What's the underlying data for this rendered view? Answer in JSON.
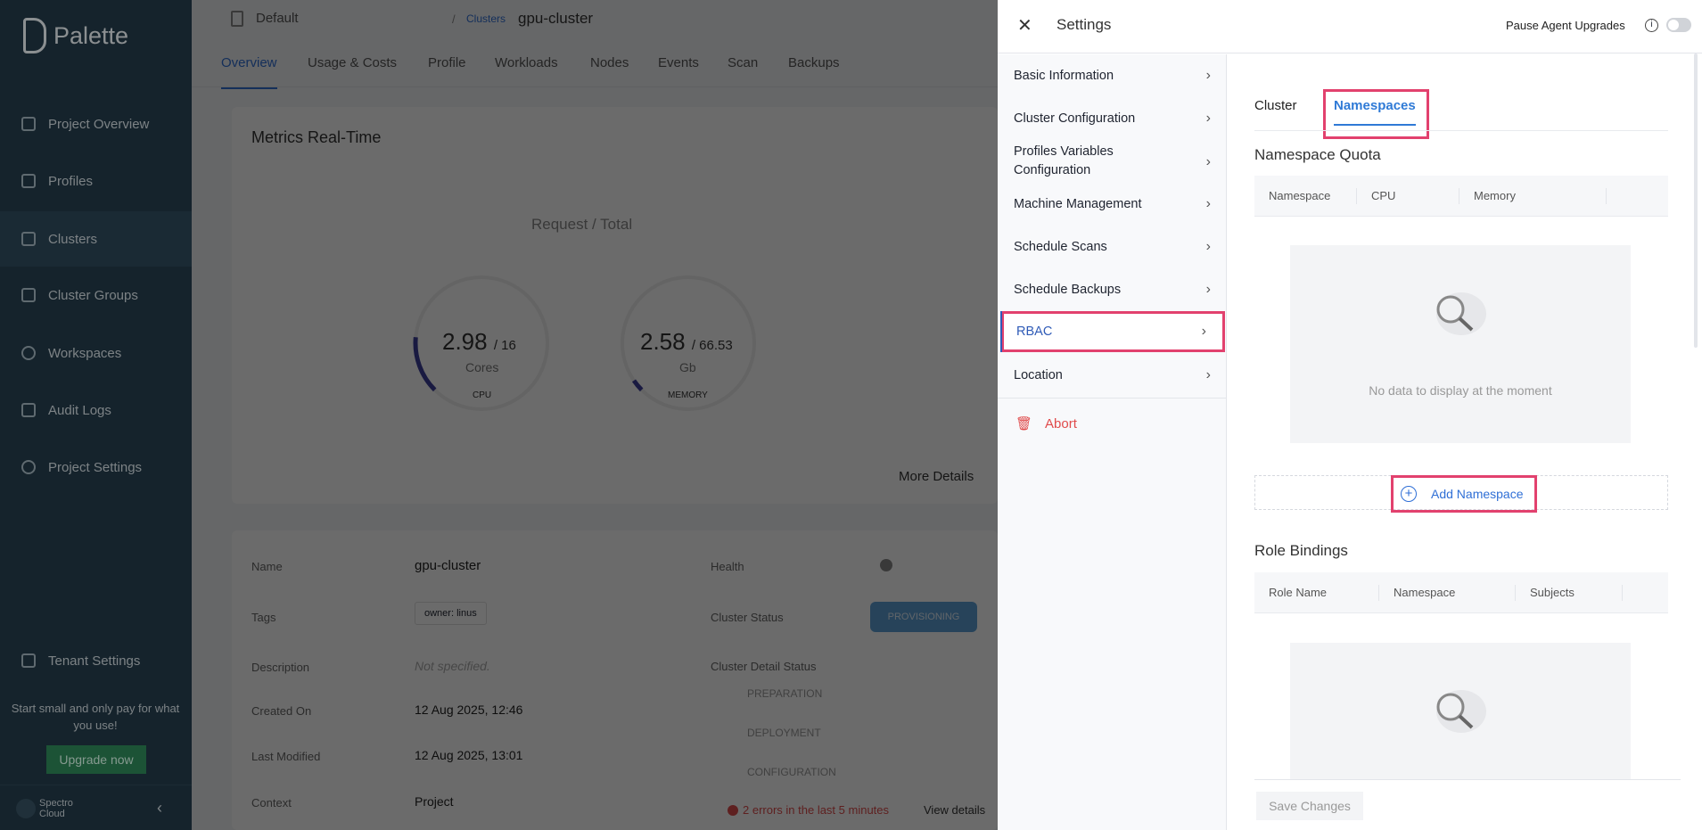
{
  "sidebar": {
    "logo": "Palette",
    "items": [
      {
        "label": "Project Overview",
        "icon": "chart-icon"
      },
      {
        "label": "Profiles",
        "icon": "stack-icon"
      },
      {
        "label": "Clusters",
        "icon": "list-icon",
        "active": true
      },
      {
        "label": "Cluster Groups",
        "icon": "network-icon"
      },
      {
        "label": "Workspaces",
        "icon": "target-icon"
      },
      {
        "label": "Audit Logs",
        "icon": "document-icon"
      },
      {
        "label": "Project Settings",
        "icon": "gear-icon"
      }
    ],
    "tenant_settings": "Tenant Settings",
    "promo": "Start small and only pay for what you use!",
    "upgrade": "Upgrade now",
    "org": "Spectro Cloud"
  },
  "main": {
    "project": "Default",
    "breadcrumb_parent": "Clusters",
    "breadcrumb_sep": "/",
    "cluster": "gpu-cluster",
    "tabs": [
      "Overview",
      "Usage & Costs",
      "Profile",
      "Workloads",
      "Nodes",
      "Events",
      "Scan",
      "Backups"
    ],
    "metrics_title": "Metrics Real-Time",
    "request_total": "Request / Total",
    "cpu": {
      "value": "2.98",
      "total": "/ 16",
      "unit": "Cores",
      "label": "CPU",
      "fraction": 0.186
    },
    "memory": {
      "value": "2.58",
      "total": "/ 66.53",
      "unit": "Gb",
      "label": "MEMORY",
      "fraction": 0.039
    },
    "more_details": "More Details",
    "details": {
      "name_label": "Name",
      "name": "gpu-cluster",
      "tags_label": "Tags",
      "tag": "owner: linus",
      "description_label": "Description",
      "description": "Not specified.",
      "created_label": "Created On",
      "created": "12 Aug 2025, 12:46",
      "modified_label": "Last Modified",
      "modified": "12 Aug 2025, 13:01",
      "context_label": "Context",
      "context": "Project",
      "health_label": "Health",
      "status_label": "Cluster Status",
      "status": "PROVISIONING",
      "detail_status_label": "Cluster Detail Status",
      "steps": [
        "PREPARATION",
        "DEPLOYMENT",
        "CONFIGURATION"
      ],
      "errors": "2 errors in the last 5 minutes",
      "view": "View details"
    }
  },
  "settings": {
    "title": "Settings",
    "pause_label": "Pause Agent Upgrades",
    "pause_enabled": false,
    "menu": [
      "Basic Information",
      "Cluster Configuration",
      "Profiles Variables Configuration",
      "Machine Management",
      "Schedule Scans",
      "Schedule Backups",
      "RBAC",
      "Location"
    ],
    "selected": "RBAC",
    "abort": "Abort",
    "tabs": [
      "Cluster",
      "Namespaces"
    ],
    "active_tab": "Namespaces",
    "quota_title": "Namespace Quota",
    "quota_columns": [
      "Namespace",
      "CPU",
      "Memory"
    ],
    "empty_text": "No data to display at the moment",
    "add_namespace": "Add Namespace",
    "rb_title": "Role Bindings",
    "rb_columns": [
      "Role Name",
      "Namespace",
      "Subjects"
    ],
    "save": "Save Changes"
  },
  "colors": {
    "accent": "#2f6fd6",
    "highlight": "#e2416e",
    "danger": "#e04b4b"
  }
}
